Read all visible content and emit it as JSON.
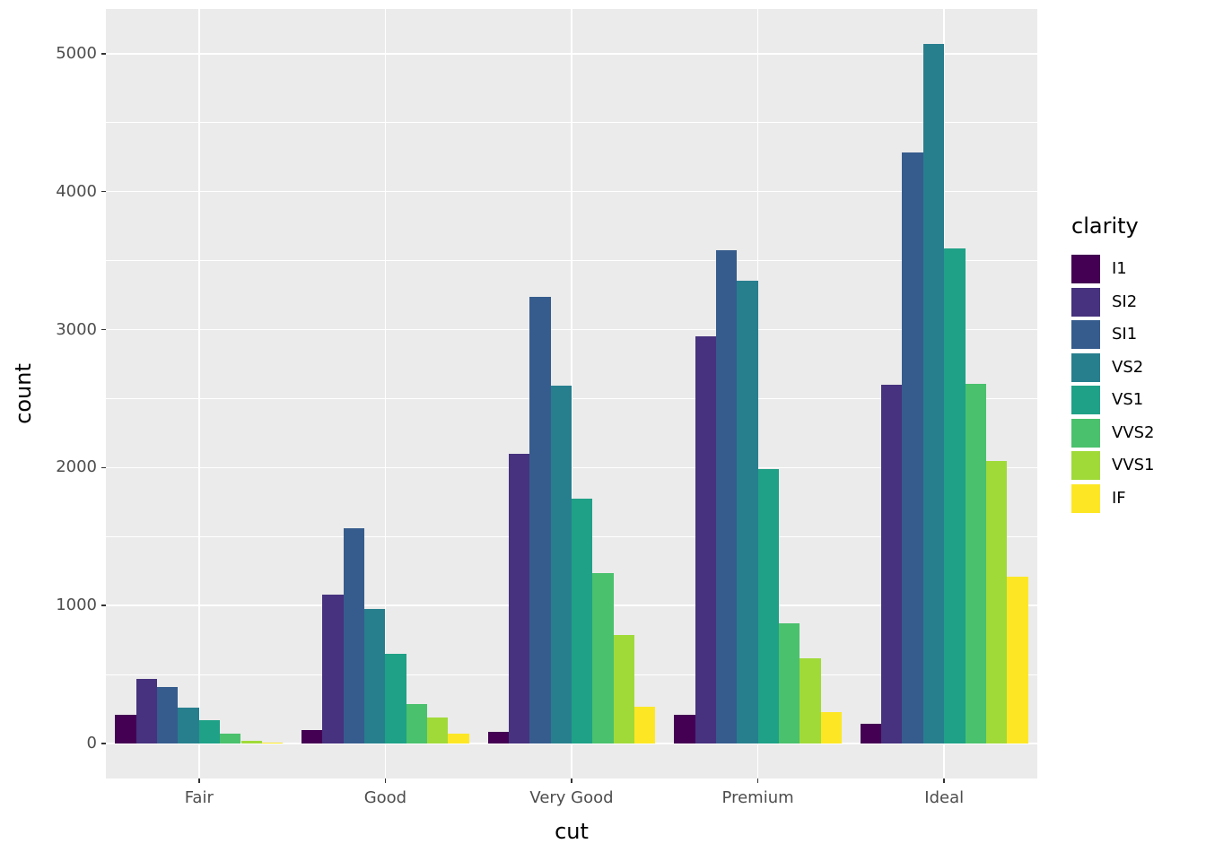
{
  "chart_data": {
    "type": "bar",
    "title": "",
    "xlabel": "cut",
    "ylabel": "count",
    "legend_title": "clarity",
    "legend_position": "right",
    "categories": [
      "Fair",
      "Good",
      "Very Good",
      "Premium",
      "Ideal"
    ],
    "series": [
      {
        "name": "I1",
        "color": "#440154",
        "values": [
          210,
          96,
          84,
          205,
          146
        ]
      },
      {
        "name": "SI2",
        "color": "#46327E",
        "values": [
          466,
          1081,
          2100,
          2949,
          2598
        ]
      },
      {
        "name": "SI1",
        "color": "#365C8D",
        "values": [
          408,
          1560,
          3240,
          3575,
          4282
        ]
      },
      {
        "name": "VS2",
        "color": "#277F8E",
        "values": [
          261,
          978,
          2591,
          3357,
          5071
        ]
      },
      {
        "name": "VS1",
        "color": "#1FA187",
        "values": [
          170,
          648,
          1775,
          1989,
          3589
        ]
      },
      {
        "name": "VVS2",
        "color": "#4AC16D",
        "values": [
          69,
          286,
          1235,
          870,
          2606
        ]
      },
      {
        "name": "VVS1",
        "color": "#A0DA39",
        "values": [
          17,
          186,
          789,
          616,
          2047
        ]
      },
      {
        "name": "IF",
        "color": "#FDE725",
        "values": [
          9,
          71,
          268,
          230,
          1212
        ]
      }
    ],
    "y_ticks": [
      0,
      1000,
      2000,
      3000,
      4000,
      5000
    ],
    "ylim": [
      0,
      5071
    ],
    "expand_fraction": 0.05,
    "bar_group_width_fraction": 0.9,
    "grid": true,
    "panel_bg": "#EBEBEB",
    "grid_color": "#FFFFFF",
    "tick_color": "#333333",
    "tick_label_color": "#4D4D4D",
    "figure_bg": "#FFFFFF"
  }
}
